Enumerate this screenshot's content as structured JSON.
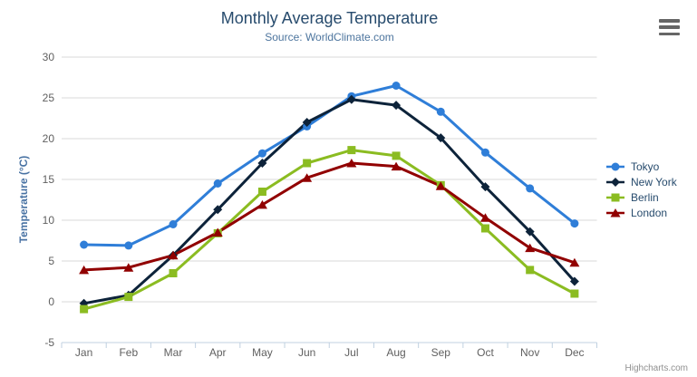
{
  "title": "Monthly Average Temperature",
  "subtitle": "Source: WorldClimate.com",
  "credits": {
    "label": "Highcharts.com"
  },
  "export_button": {
    "icon": "hamburger-icon"
  },
  "colors": {
    "title": "#274b6d",
    "subtitle": "#4d759e",
    "axis_label": "#606060",
    "axis_title": "#4872a3",
    "gridline": "#d8d8d8",
    "axis_line": "#c0d0e0",
    "legend_text": "#274b6d",
    "credits_text": "#909090",
    "export_icon": "#666666",
    "background": "#ffffff"
  },
  "chart_data": {
    "type": "line",
    "title": "Monthly Average Temperature",
    "subtitle": "Source: WorldClimate.com",
    "xlabel": "",
    "ylabel": "Temperature (°C)",
    "ylim": [
      -5,
      30
    ],
    "yticks": [
      -5,
      0,
      5,
      10,
      15,
      20,
      25,
      30
    ],
    "grid": "horizontal",
    "legend_position": "right-middle",
    "categories": [
      "Jan",
      "Feb",
      "Mar",
      "Apr",
      "May",
      "Jun",
      "Jul",
      "Aug",
      "Sep",
      "Oct",
      "Nov",
      "Dec"
    ],
    "series": [
      {
        "name": "Tokyo",
        "color": "#2f7ed8",
        "marker": "circle",
        "values": [
          7.0,
          6.9,
          9.5,
          14.5,
          18.2,
          21.5,
          25.2,
          26.5,
          23.3,
          18.3,
          13.9,
          9.6
        ]
      },
      {
        "name": "New York",
        "color": "#0d233a",
        "marker": "diamond",
        "values": [
          -0.2,
          0.8,
          5.7,
          11.3,
          17.0,
          22.0,
          24.8,
          24.1,
          20.1,
          14.1,
          8.6,
          2.5
        ]
      },
      {
        "name": "Berlin",
        "color": "#8bbc21",
        "marker": "square",
        "values": [
          -0.9,
          0.6,
          3.5,
          8.4,
          13.5,
          17.0,
          18.6,
          17.9,
          14.3,
          9.0,
          3.9,
          1.0
        ]
      },
      {
        "name": "London",
        "color": "#910000",
        "marker": "triangle",
        "values": [
          3.9,
          4.2,
          5.7,
          8.5,
          11.9,
          15.2,
          17.0,
          16.6,
          14.2,
          10.3,
          6.6,
          4.8
        ]
      }
    ]
  }
}
